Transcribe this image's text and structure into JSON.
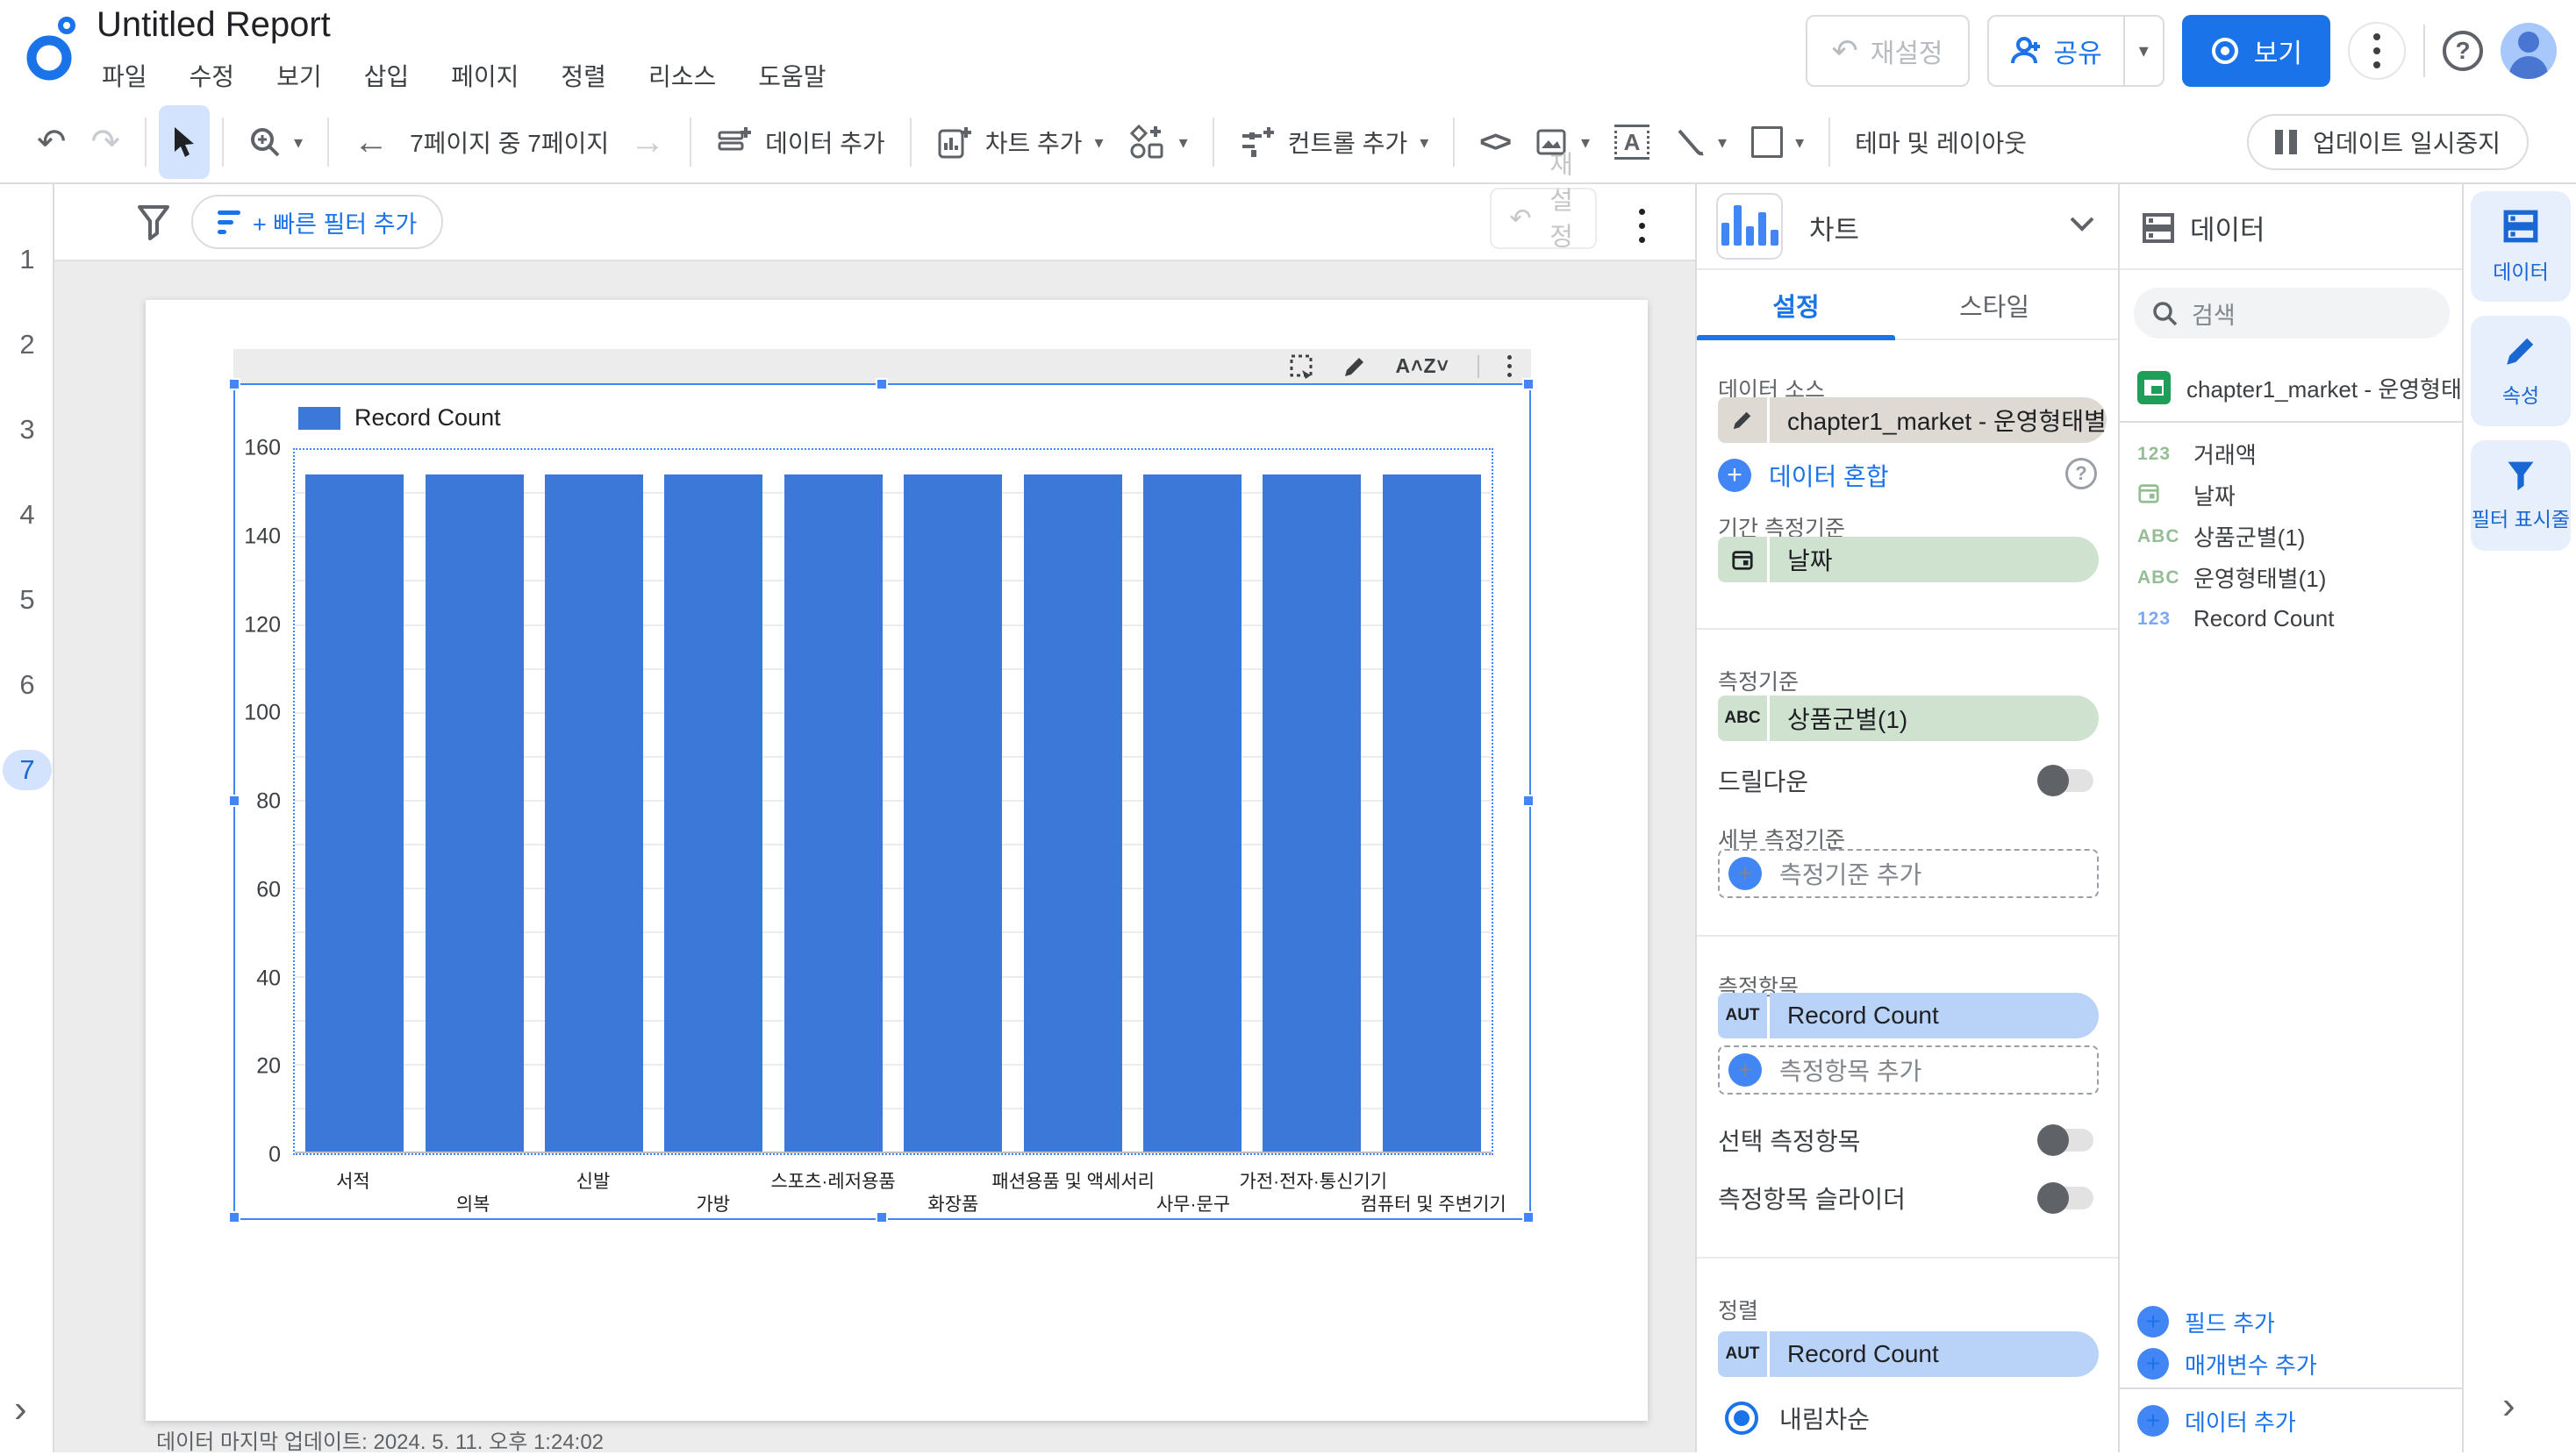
{
  "header": {
    "title": "Untitled Report",
    "menus": [
      "파일",
      "수정",
      "보기",
      "삽입",
      "페이지",
      "정렬",
      "리소스",
      "도움말"
    ],
    "reset_label": "재설정",
    "share_label": "공유",
    "view_label": "보기",
    "help_glyph": "?"
  },
  "toolbar": {
    "page_indicator": "7페이지 중 7페이지",
    "add_data_label": "데이터 추가",
    "add_chart_label": "차트 추가",
    "add_control_label": "컨트롤 추가",
    "theme_layout_label": "테마 및 레이아웃",
    "pause_updates_label": "업데이트 일시중지"
  },
  "canvas": {
    "pages": [
      "1",
      "2",
      "3",
      "4",
      "5",
      "6",
      "7"
    ],
    "active_page": "7",
    "quick_filter_label": "+ 빠른 필터 추가",
    "reset_vertical_label": "재설정",
    "last_updated": "데이터 마지막 업데이트: 2024. 5. 11. 오후 1:24:02"
  },
  "chart_data": {
    "type": "bar",
    "legend": "Record Count",
    "categories": [
      "서적",
      "의복",
      "신발",
      "가방",
      "스포츠·레저용품",
      "화장품",
      "패션용품 및 액세서리",
      "사무·문구",
      "가전·전자·통신기기",
      "컴퓨터 및 주변기기"
    ],
    "values": [
      154,
      154,
      154,
      154,
      154,
      154,
      154,
      154,
      154,
      154
    ],
    "ylim": [
      0,
      160
    ],
    "yticks": [
      0,
      20,
      40,
      60,
      80,
      100,
      120,
      140,
      160
    ],
    "minor_grid_step": 10,
    "bar_color": "#3c78d8",
    "legend_position": "top-left",
    "grid": true,
    "xlabel": "",
    "ylabel": "",
    "title": ""
  },
  "chart_panel": {
    "title": "차트",
    "tabs": {
      "setup": "설정",
      "style": "스타일"
    },
    "active_tab": "설정",
    "data_source_label": "데이터 소스",
    "data_source": "chapter1_market - 운영형태별",
    "blend_data_label": "데이터 혼합",
    "date_range_dimension_label": "기간 측정기준",
    "date_range_dimension": "날짜",
    "dimension_label": "측정기준",
    "dimension": "상품군별(1)",
    "dimension_badge": "ABC",
    "drilldown_label": "드릴다운",
    "breakdown_label": "세부 측정기준",
    "add_dimension_label": "측정기준 추가",
    "metric_label": "측정항목",
    "metric": "Record Count",
    "metric_badge": "AUT",
    "add_metric_label": "측정항목 추가",
    "optional_metric_label": "선택 측정항목",
    "metric_slider_label": "측정항목 슬라이더",
    "sort_label": "정렬",
    "sort_metric": "Record Count",
    "sort_metric_badge": "AUT",
    "sort_order": "내림차순"
  },
  "data_panel": {
    "title": "데이터",
    "search_placeholder": "검색",
    "source_name": "chapter1_market - 운영형태별",
    "fields": [
      {
        "badge": "123",
        "color": "green",
        "name": "거래액"
      },
      {
        "badge": "date",
        "color": "green",
        "name": "날짜"
      },
      {
        "badge": "ABC",
        "color": "green",
        "name": "상품군별(1)"
      },
      {
        "badge": "ABC",
        "color": "green",
        "name": "운영형태별(1)"
      },
      {
        "badge": "123",
        "color": "blue",
        "name": "Record Count"
      }
    ],
    "add_field_label": "필드 추가",
    "add_parameter_label": "매개변수 추가",
    "add_data_label": "데이터 추가"
  },
  "right_rail": {
    "data_label": "데이터",
    "properties_label": "속성",
    "filter_bar_label": "필터 표시줄"
  }
}
